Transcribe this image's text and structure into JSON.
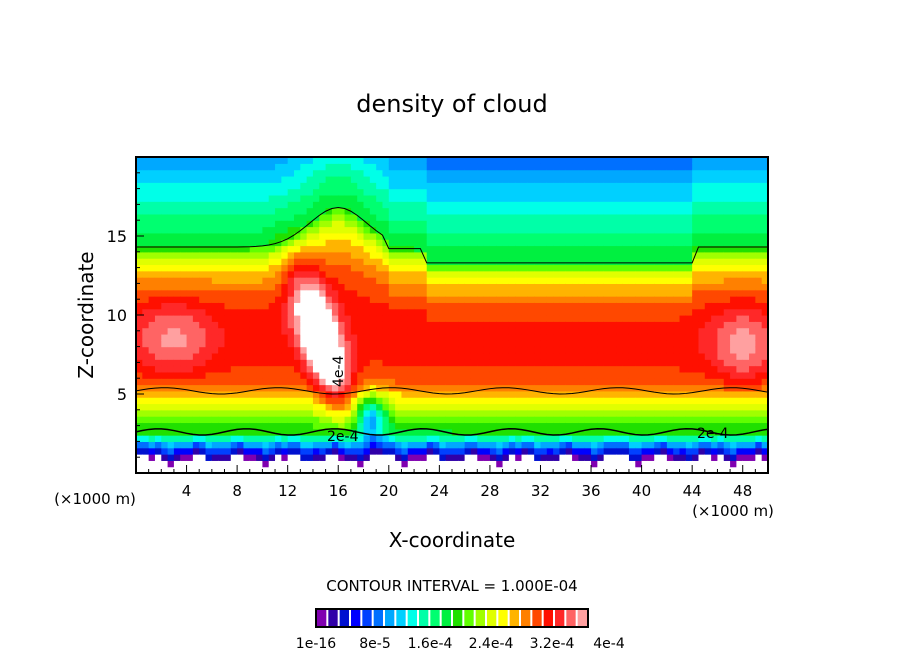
{
  "chart_data": {
    "type": "heatmap",
    "title": "density of cloud",
    "xlabel": "X-coordinate",
    "ylabel": "Z-coordinate",
    "x_unit_left": "(×1000 m)",
    "x_unit_right": "(×1000 m)",
    "xlim": [
      0,
      50
    ],
    "ylim": [
      0,
      20
    ],
    "xticks": [
      4,
      8,
      12,
      16,
      20,
      24,
      28,
      32,
      36,
      40,
      44,
      48
    ],
    "yticks": [
      5,
      10,
      15
    ],
    "contour_interval_text": "CONTOUR INTERVAL = 1.000E-04",
    "contour_labels": [
      "2e-4",
      "2e-4",
      "4e-4"
    ],
    "colorbar": {
      "vmin": 0,
      "vmax": 0.0004,
      "labels": [
        "1e-16",
        "8e-5",
        "1.6e-4",
        "2.4e-4",
        "3.2e-4",
        "4e-4"
      ],
      "colors": [
        "#8000b0",
        "#3000a8",
        "#0010d0",
        "#0000ff",
        "#0040ff",
        "#0070ff",
        "#00a8ff",
        "#00d0ff",
        "#00ffe8",
        "#00ffa8",
        "#00ff70",
        "#00f040",
        "#20e000",
        "#60ff00",
        "#a0ff00",
        "#e0ff00",
        "#ffff00",
        "#ffb400",
        "#ff8000",
        "#ff4800",
        "#ff1000",
        "#ff2828",
        "#ff6464",
        "#ffa0a0"
      ]
    }
  }
}
